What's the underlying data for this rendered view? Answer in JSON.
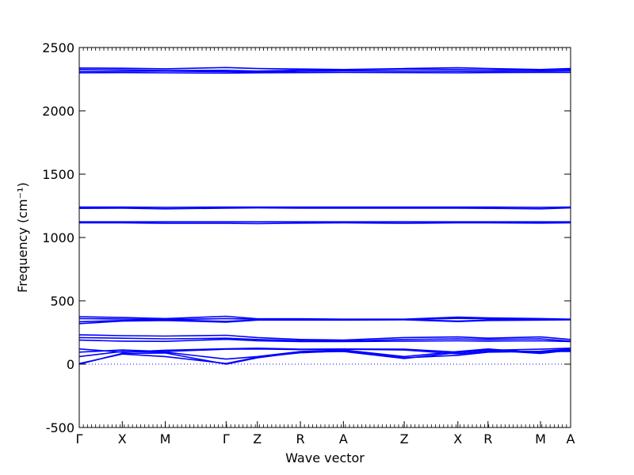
{
  "chart_data": {
    "type": "line",
    "title": "",
    "xlabel": "Wave vector",
    "ylabel": "Frequency (cm⁻¹)",
    "ylim": [
      -500,
      2500
    ],
    "yticks": [
      -500,
      0,
      500,
      1000,
      1500,
      2000,
      2500
    ],
    "grid": false,
    "colors": {
      "bands": "#0000ff",
      "zero_line": "#0000ff",
      "axis": "#000000"
    },
    "kpoint_labels": [
      "Γ",
      "X",
      "M",
      "Γ",
      "Z",
      "R",
      "A",
      "Z",
      "X",
      "R",
      "M",
      "A"
    ],
    "kpoint_positions": [
      0.0,
      0.5,
      1.0,
      1.707,
      2.07,
      2.57,
      3.07,
      3.777,
      4.4,
      4.75,
      5.36,
      5.71
    ],
    "x_range": [
      0.0,
      5.71
    ],
    "series": [
      {
        "values": [
          [
            0.0,
            2338
          ],
          [
            0.5,
            2336
          ],
          [
            1.0,
            2332
          ],
          [
            1.707,
            2342
          ],
          [
            2.07,
            2334
          ],
          [
            2.57,
            2330
          ],
          [
            3.07,
            2326
          ],
          [
            3.777,
            2334
          ],
          [
            4.4,
            2340
          ],
          [
            4.75,
            2334
          ],
          [
            5.36,
            2326
          ],
          [
            5.71,
            2334
          ]
        ]
      },
      {
        "values": [
          [
            0.0,
            2326
          ],
          [
            0.5,
            2324
          ],
          [
            1.0,
            2318
          ],
          [
            1.707,
            2320
          ],
          [
            2.07,
            2314
          ],
          [
            2.57,
            2322
          ],
          [
            3.07,
            2324
          ],
          [
            3.777,
            2328
          ],
          [
            4.4,
            2326
          ],
          [
            4.75,
            2322
          ],
          [
            5.36,
            2324
          ],
          [
            5.71,
            2326
          ]
        ]
      },
      {
        "values": [
          [
            0.0,
            2310
          ],
          [
            0.5,
            2312
          ],
          [
            1.0,
            2314
          ],
          [
            1.707,
            2310
          ],
          [
            2.07,
            2306
          ],
          [
            2.57,
            2312
          ],
          [
            3.07,
            2316
          ],
          [
            3.777,
            2314
          ],
          [
            4.4,
            2312
          ],
          [
            4.75,
            2310
          ],
          [
            5.36,
            2314
          ],
          [
            5.71,
            2316
          ]
        ]
      },
      {
        "values": [
          [
            0.0,
            2300
          ],
          [
            0.5,
            2302
          ],
          [
            1.0,
            2300
          ],
          [
            1.707,
            2298
          ],
          [
            2.07,
            2300
          ],
          [
            2.57,
            2302
          ],
          [
            3.07,
            2304
          ],
          [
            3.777,
            2302
          ],
          [
            4.4,
            2300
          ],
          [
            4.75,
            2302
          ],
          [
            5.36,
            2304
          ],
          [
            5.71,
            2304
          ]
        ]
      },
      {
        "values": [
          [
            0.0,
            1240
          ],
          [
            0.5,
            1240
          ],
          [
            1.0,
            1238
          ],
          [
            1.707,
            1240
          ],
          [
            2.07,
            1240
          ],
          [
            2.57,
            1240
          ],
          [
            3.07,
            1240
          ],
          [
            3.777,
            1240
          ],
          [
            4.4,
            1240
          ],
          [
            4.75,
            1240
          ],
          [
            5.36,
            1238
          ],
          [
            5.71,
            1240
          ]
        ]
      },
      {
        "values": [
          [
            0.0,
            1230
          ],
          [
            0.5,
            1232
          ],
          [
            1.0,
            1226
          ],
          [
            1.707,
            1232
          ],
          [
            2.07,
            1234
          ],
          [
            2.57,
            1232
          ],
          [
            3.07,
            1232
          ],
          [
            3.777,
            1232
          ],
          [
            4.4,
            1232
          ],
          [
            4.75,
            1230
          ],
          [
            5.36,
            1226
          ],
          [
            5.71,
            1234
          ]
        ]
      },
      {
        "values": [
          [
            0.0,
            1124
          ],
          [
            0.5,
            1124
          ],
          [
            1.0,
            1124
          ],
          [
            1.707,
            1124
          ],
          [
            2.07,
            1124
          ],
          [
            2.57,
            1124
          ],
          [
            3.07,
            1124
          ],
          [
            3.777,
            1124
          ],
          [
            4.4,
            1124
          ],
          [
            4.75,
            1124
          ],
          [
            5.36,
            1124
          ],
          [
            5.71,
            1124
          ]
        ]
      },
      {
        "values": [
          [
            0.0,
            1116
          ],
          [
            0.5,
            1116
          ],
          [
            1.0,
            1112
          ],
          [
            1.707,
            1112
          ],
          [
            2.07,
            1110
          ],
          [
            2.57,
            1114
          ],
          [
            3.07,
            1116
          ],
          [
            3.777,
            1112
          ],
          [
            4.4,
            1116
          ],
          [
            4.75,
            1116
          ],
          [
            5.36,
            1114
          ],
          [
            5.71,
            1116
          ]
        ]
      },
      {
        "values": [
          [
            0.0,
            375
          ],
          [
            0.5,
            368
          ],
          [
            1.0,
            360
          ],
          [
            1.707,
            378
          ],
          [
            2.07,
            358
          ],
          [
            2.57,
            358
          ],
          [
            3.07,
            355
          ],
          [
            3.777,
            355
          ],
          [
            4.4,
            372
          ],
          [
            4.75,
            365
          ],
          [
            5.36,
            360
          ],
          [
            5.71,
            355
          ]
        ]
      },
      {
        "values": [
          [
            0.0,
            360
          ],
          [
            0.5,
            356
          ],
          [
            1.0,
            352
          ],
          [
            1.707,
            360
          ],
          [
            2.07,
            355
          ],
          [
            2.57,
            354
          ],
          [
            3.07,
            352
          ],
          [
            3.777,
            352
          ],
          [
            4.4,
            362
          ],
          [
            4.75,
            358
          ],
          [
            5.36,
            356
          ],
          [
            5.71,
            352
          ]
        ]
      },
      {
        "values": [
          [
            0.0,
            335
          ],
          [
            0.5,
            345
          ],
          [
            1.0,
            350
          ],
          [
            1.707,
            338
          ],
          [
            2.07,
            350
          ],
          [
            2.57,
            350
          ],
          [
            3.07,
            350
          ],
          [
            3.777,
            352
          ],
          [
            4.4,
            340
          ],
          [
            4.75,
            348
          ],
          [
            5.36,
            350
          ],
          [
            5.71,
            352
          ]
        ]
      },
      {
        "values": [
          [
            0.0,
            320
          ],
          [
            0.5,
            340
          ],
          [
            1.0,
            345
          ],
          [
            1.707,
            332
          ],
          [
            2.07,
            348
          ],
          [
            2.57,
            348
          ],
          [
            3.07,
            348
          ],
          [
            3.777,
            350
          ],
          [
            4.4,
            336
          ],
          [
            4.75,
            345
          ],
          [
            5.36,
            348
          ],
          [
            5.71,
            350
          ]
        ]
      },
      {
        "values": [
          [
            0.0,
            232
          ],
          [
            0.5,
            225
          ],
          [
            1.0,
            222
          ],
          [
            1.707,
            228
          ],
          [
            2.07,
            210
          ],
          [
            2.57,
            195
          ],
          [
            3.07,
            190
          ],
          [
            3.777,
            210
          ],
          [
            4.4,
            215
          ],
          [
            4.75,
            205
          ],
          [
            5.36,
            215
          ],
          [
            5.71,
            195
          ]
        ]
      },
      {
        "values": [
          [
            0.0,
            210
          ],
          [
            0.5,
            205
          ],
          [
            1.0,
            200
          ],
          [
            1.707,
            205
          ],
          [
            2.07,
            195
          ],
          [
            2.57,
            185
          ],
          [
            3.07,
            182
          ],
          [
            3.777,
            195
          ],
          [
            4.4,
            200
          ],
          [
            4.75,
            195
          ],
          [
            5.36,
            200
          ],
          [
            5.71,
            182
          ]
        ]
      },
      {
        "values": [
          [
            0.0,
            190
          ],
          [
            0.5,
            182
          ],
          [
            1.0,
            180
          ],
          [
            1.707,
            196
          ],
          [
            2.07,
            185
          ],
          [
            2.57,
            178
          ],
          [
            3.07,
            178
          ],
          [
            3.777,
            182
          ],
          [
            4.4,
            185
          ],
          [
            4.75,
            182
          ],
          [
            5.36,
            185
          ],
          [
            5.71,
            178
          ]
        ]
      },
      {
        "values": [
          [
            0.0,
            120
          ],
          [
            0.5,
            95
          ],
          [
            1.0,
            110
          ],
          [
            1.707,
            122
          ],
          [
            2.07,
            126
          ],
          [
            2.57,
            118
          ],
          [
            3.07,
            120
          ],
          [
            3.777,
            118
          ],
          [
            4.4,
            95
          ],
          [
            4.75,
            110
          ],
          [
            5.36,
            118
          ],
          [
            5.71,
            126
          ]
        ]
      },
      {
        "values": [
          [
            0.0,
            95
          ],
          [
            0.5,
            112
          ],
          [
            1.0,
            100
          ],
          [
            1.707,
            118
          ],
          [
            2.07,
            120
          ],
          [
            2.57,
            115
          ],
          [
            3.07,
            118
          ],
          [
            3.777,
            112
          ],
          [
            4.4,
            82
          ],
          [
            4.75,
            100
          ],
          [
            5.36,
            102
          ],
          [
            5.71,
            120
          ]
        ]
      },
      {
        "values": [
          [
            0.0,
            60
          ],
          [
            0.5,
            100
          ],
          [
            1.0,
            95
          ],
          [
            1.707,
            40
          ],
          [
            2.07,
            60
          ],
          [
            2.57,
            100
          ],
          [
            3.07,
            112
          ],
          [
            3.777,
            60
          ],
          [
            4.4,
            100
          ],
          [
            4.75,
            120
          ],
          [
            5.36,
            90
          ],
          [
            5.71,
            115
          ]
        ]
      },
      {
        "values": [
          [
            0.0,
            0
          ],
          [
            0.5,
            85
          ],
          [
            1.0,
            88
          ],
          [
            1.707,
            0
          ],
          [
            2.07,
            50
          ],
          [
            2.57,
            95
          ],
          [
            3.07,
            100
          ],
          [
            3.777,
            45
          ],
          [
            4.4,
            92
          ],
          [
            4.75,
            110
          ],
          [
            5.36,
            85
          ],
          [
            5.71,
            110
          ]
        ]
      },
      {
        "values": [
          [
            0.0,
            5
          ],
          [
            0.5,
            80
          ],
          [
            1.0,
            60
          ],
          [
            1.707,
            5
          ],
          [
            2.07,
            55
          ],
          [
            2.57,
            90
          ],
          [
            3.07,
            105
          ],
          [
            3.777,
            50
          ],
          [
            4.4,
            70
          ],
          [
            4.75,
            95
          ],
          [
            5.36,
            100
          ],
          [
            5.71,
            100
          ]
        ]
      }
    ]
  }
}
